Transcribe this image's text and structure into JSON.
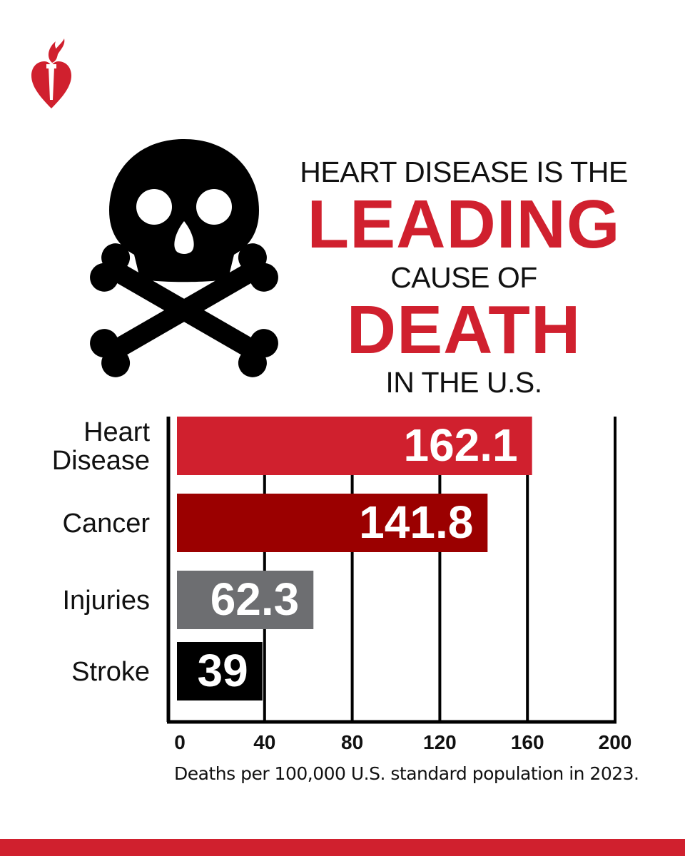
{
  "headline": {
    "line1": "HEART DISEASE IS THE",
    "line2": "LEADING",
    "line3": "CAUSE OF",
    "line4": "DEATH",
    "line5": "IN THE U.S."
  },
  "caption": "Deaths per 100,000 U.S. standard population in 2023.",
  "colors": {
    "brand_red": "#d0202e",
    "dark_red": "#9b0000",
    "gray": "#6d6e71",
    "black": "#000000"
  },
  "icons": {
    "logo": "aha-heart-torch-icon",
    "skull": "skull-crossbones-icon"
  },
  "chart_data": {
    "type": "bar",
    "orientation": "horizontal",
    "categories": [
      "Heart Disease",
      "Cancer",
      "Injuries",
      "Stroke"
    ],
    "category_lines": [
      [
        "Heart",
        "Disease"
      ],
      [
        "Cancer"
      ],
      [
        "Injuries"
      ],
      [
        "Stroke"
      ]
    ],
    "values": [
      162.1,
      141.8,
      62.3,
      39
    ],
    "value_labels": [
      "162.1",
      "141.8",
      "62.3",
      "39"
    ],
    "bar_colors": [
      "#d0202e",
      "#9b0000",
      "#6d6e71",
      "#000000"
    ],
    "xlim": [
      0,
      200
    ],
    "xticks": [
      "0",
      "40",
      "80",
      "120",
      "160",
      "200"
    ],
    "grid": true
  }
}
